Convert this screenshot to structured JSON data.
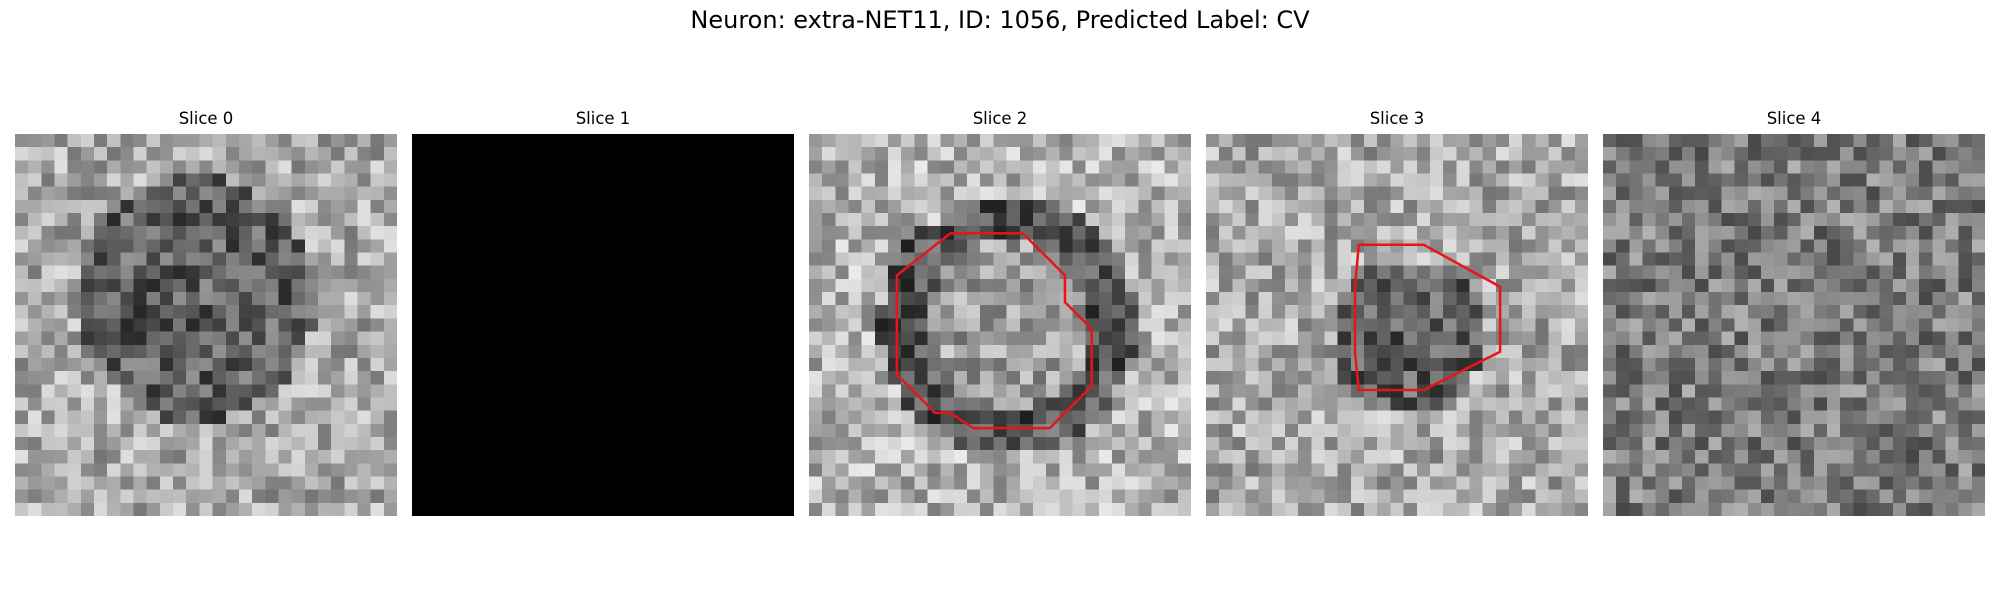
{
  "figure": {
    "title": "Neuron: extra-NET11, ID: 1056, Predicted Label: CV"
  },
  "slices": [
    {
      "label": "Slice 0",
      "grid": 29,
      "blank": false,
      "center": [
        0.47,
        0.43
      ],
      "radius": 0.32,
      "ring": "dark-disk",
      "seed": 11,
      "contour": null
    },
    {
      "label": "Slice 1",
      "grid": 29,
      "blank": true,
      "contour": null
    },
    {
      "label": "Slice 2",
      "grid": 29,
      "blank": false,
      "center": [
        0.52,
        0.5
      ],
      "radius": 0.3,
      "ring": "dark-ring",
      "seed": 23,
      "contour": [
        [
          0.37,
          0.26
        ],
        [
          0.56,
          0.26
        ],
        [
          0.67,
          0.37
        ],
        [
          0.67,
          0.44
        ],
        [
          0.74,
          0.51
        ],
        [
          0.74,
          0.66
        ],
        [
          0.63,
          0.77
        ],
        [
          0.43,
          0.77
        ],
        [
          0.37,
          0.73
        ],
        [
          0.33,
          0.73
        ],
        [
          0.23,
          0.63
        ],
        [
          0.23,
          0.37
        ]
      ]
    },
    {
      "label": "Slice 3",
      "grid": 29,
      "blank": false,
      "center": [
        0.53,
        0.53
      ],
      "radius": 0.2,
      "ring": "dark-disk",
      "seed": 37,
      "contour": [
        [
          0.4,
          0.29
        ],
        [
          0.57,
          0.29
        ],
        [
          0.77,
          0.4
        ],
        [
          0.77,
          0.57
        ],
        [
          0.57,
          0.67
        ],
        [
          0.4,
          0.67
        ],
        [
          0.39,
          0.57
        ],
        [
          0.39,
          0.4
        ]
      ]
    },
    {
      "label": "Slice 4",
      "grid": 29,
      "blank": false,
      "center": [
        0.5,
        0.4
      ],
      "radius": 0.4,
      "ring": "noise",
      "seed": 53,
      "contour": null
    }
  ],
  "colors": {
    "contour": "#e8141a",
    "blank": "#000000"
  }
}
